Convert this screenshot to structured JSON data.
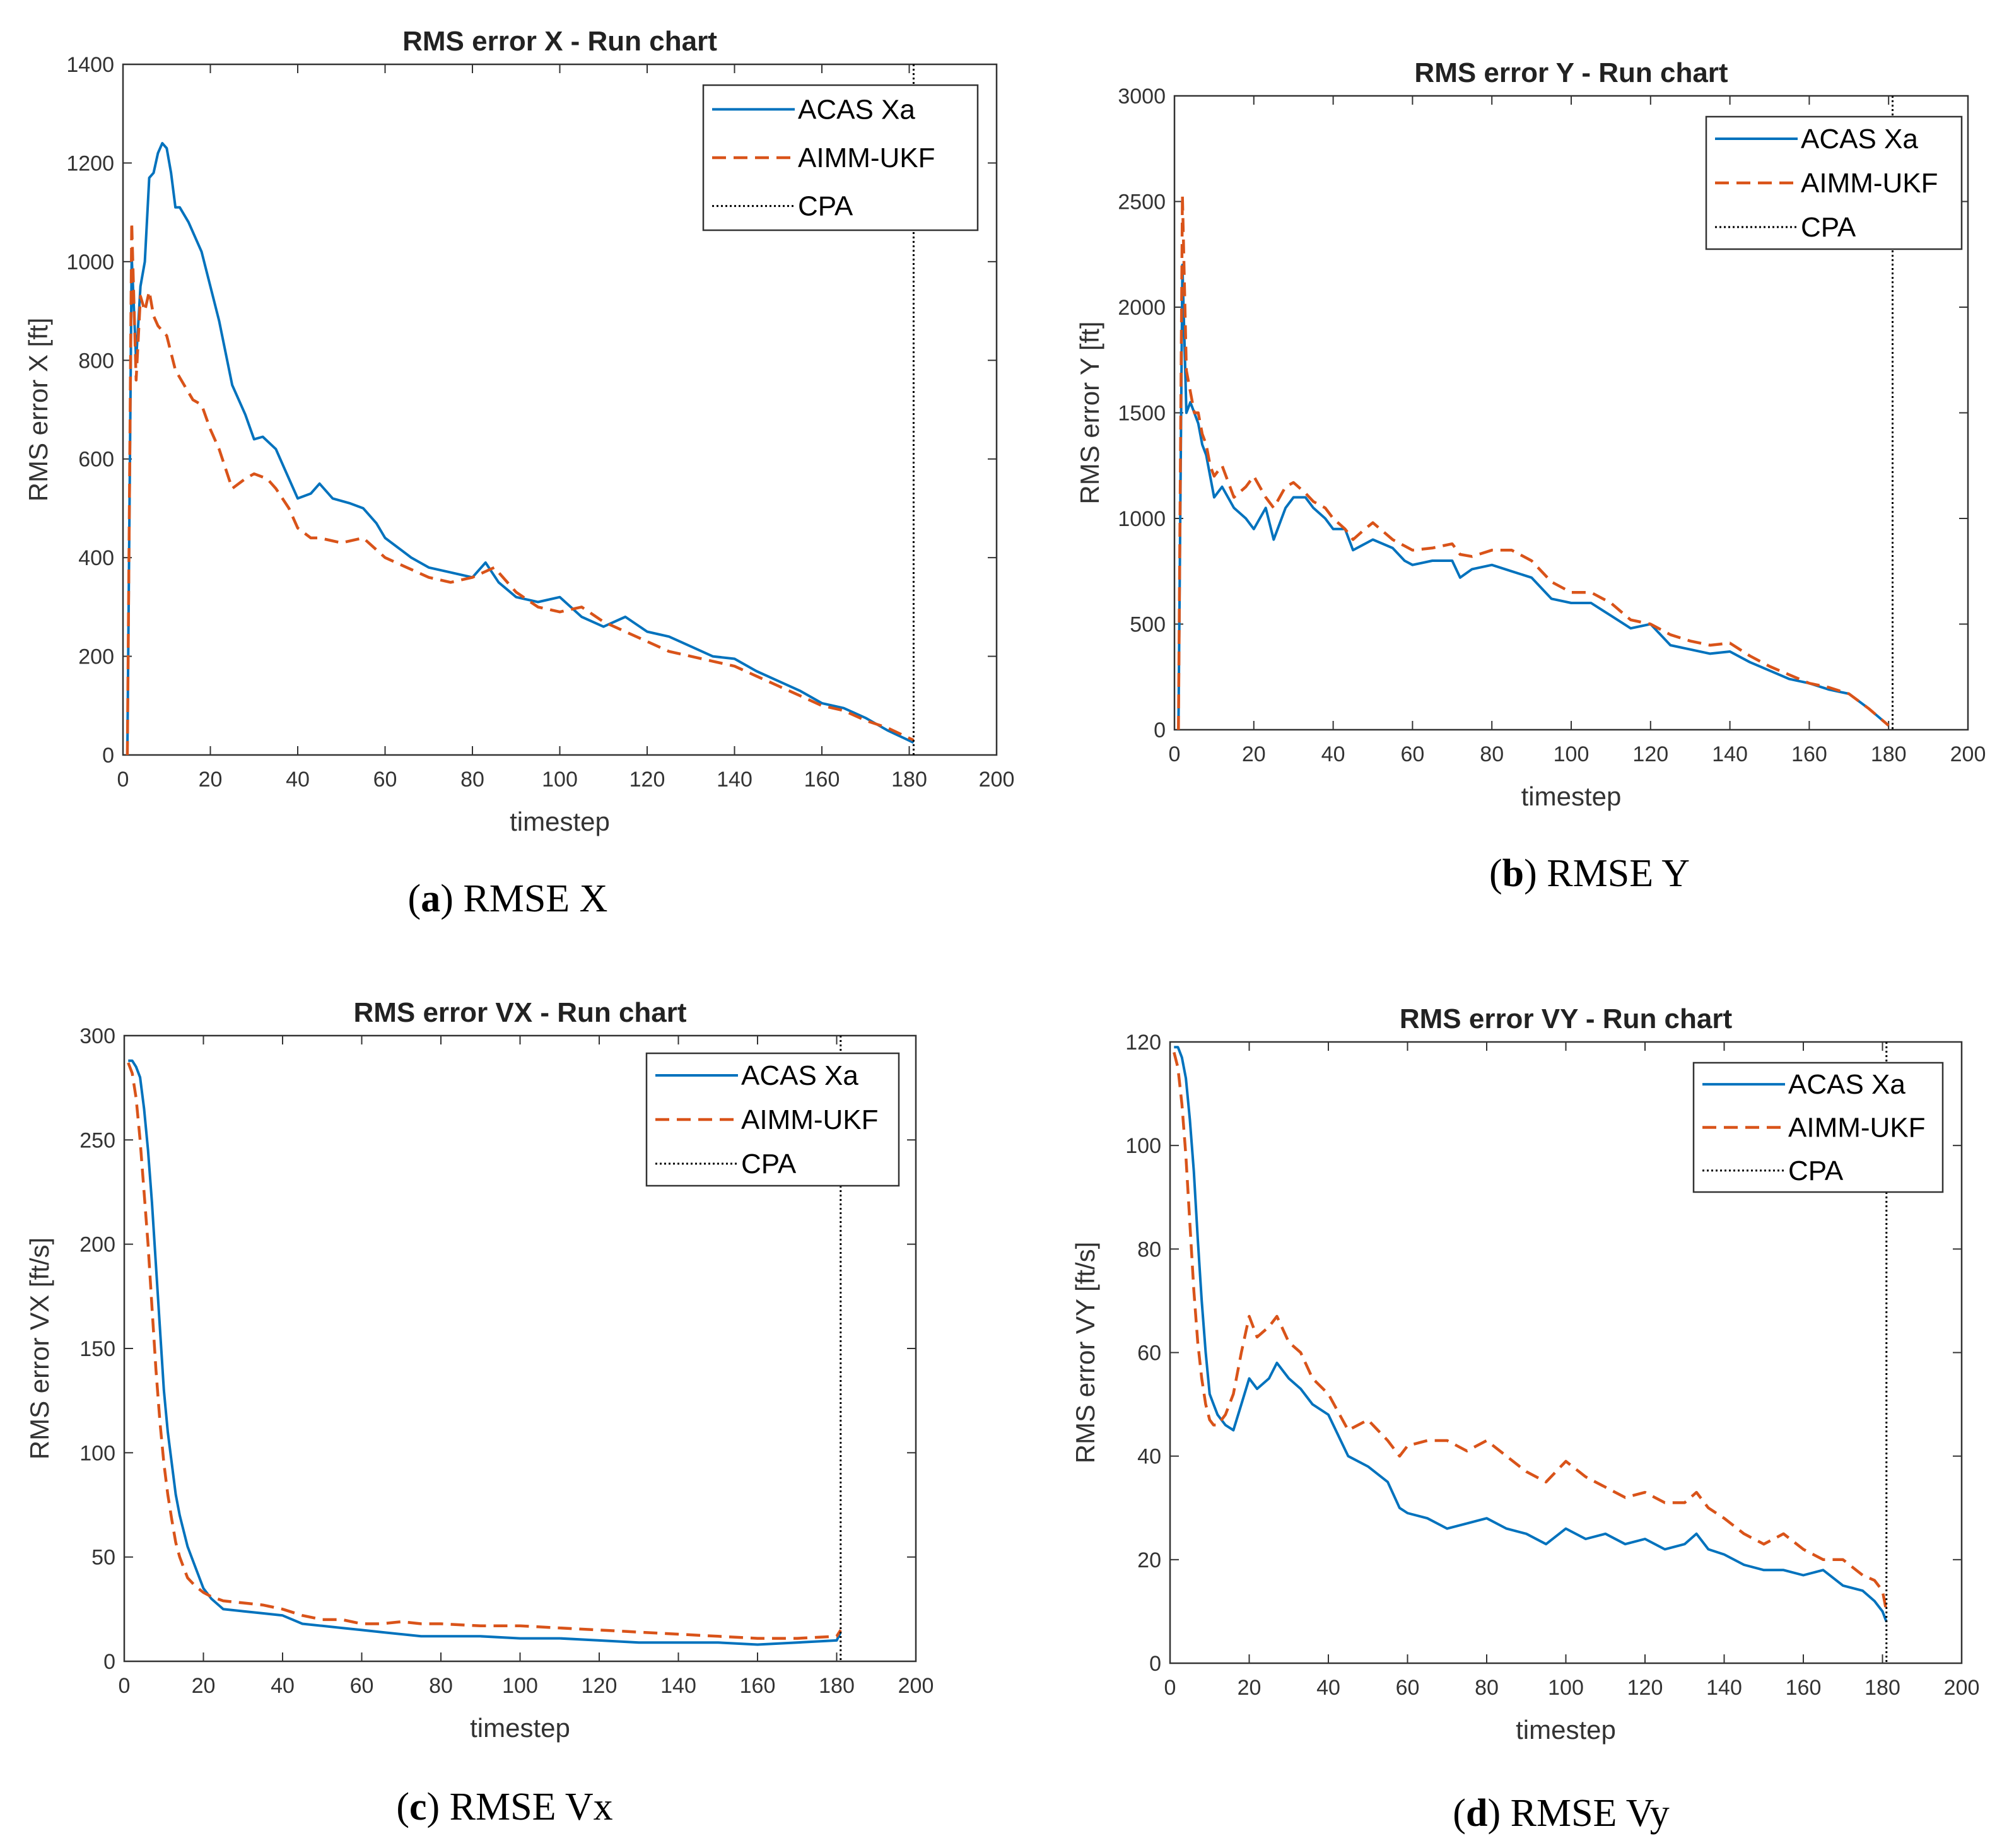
{
  "colors": {
    "acas": "#0072BD",
    "aimm": "#D95319",
    "cpa": "#000000",
    "axes": "#333333"
  },
  "chart_data": [
    {
      "id": "a",
      "type": "line",
      "title": "RMS error X - Run chart",
      "xlabel": "timestep",
      "ylabel": "RMS error X [ft]",
      "xlim": [
        0,
        200
      ],
      "ylim": [
        0,
        1400
      ],
      "xticks": [
        0,
        20,
        40,
        60,
        80,
        100,
        120,
        140,
        160,
        180,
        200
      ],
      "yticks": [
        0,
        200,
        400,
        600,
        800,
        1000,
        1200,
        1400
      ],
      "caption": {
        "label": "a",
        "text": "RMSE X"
      },
      "legend": [
        "ACAS Xa",
        "AIMM-UKF",
        "CPA"
      ],
      "cpa_x": 181,
      "series": [
        {
          "name": "ACAS Xa",
          "style": "solid",
          "x": [
            1,
            2,
            3,
            4,
            5,
            6,
            7,
            8,
            9,
            10,
            11,
            12,
            13,
            15,
            18,
            22,
            25,
            28,
            30,
            32,
            35,
            37,
            40,
            43,
            45,
            48,
            52,
            55,
            58,
            60,
            63,
            66,
            70,
            75,
            80,
            83,
            86,
            90,
            95,
            100,
            105,
            110,
            115,
            120,
            125,
            130,
            135,
            140,
            145,
            150,
            155,
            160,
            165,
            170,
            175,
            181
          ],
          "y": [
            0,
            1010,
            800,
            950,
            1000,
            1170,
            1180,
            1220,
            1240,
            1230,
            1180,
            1110,
            1110,
            1080,
            1020,
            880,
            750,
            690,
            640,
            645,
            620,
            580,
            520,
            530,
            550,
            520,
            510,
            500,
            470,
            440,
            420,
            400,
            380,
            370,
            360,
            390,
            350,
            320,
            310,
            320,
            280,
            260,
            280,
            250,
            240,
            220,
            200,
            195,
            170,
            150,
            130,
            105,
            95,
            75,
            50,
            25
          ]
        },
        {
          "name": "AIMM-UKF",
          "style": "dashed",
          "x": [
            1,
            2,
            3,
            4,
            5,
            6,
            7,
            8,
            9,
            10,
            12,
            14,
            16,
            18,
            20,
            22,
            25,
            28,
            30,
            33,
            35,
            38,
            40,
            43,
            45,
            50,
            55,
            60,
            65,
            70,
            75,
            80,
            85,
            90,
            95,
            100,
            105,
            110,
            115,
            120,
            125,
            130,
            135,
            140,
            145,
            150,
            155,
            160,
            165,
            170,
            175,
            181
          ],
          "y": [
            0,
            1080,
            760,
            930,
            900,
            940,
            890,
            870,
            860,
            850,
            780,
            750,
            720,
            710,
            660,
            620,
            540,
            560,
            570,
            560,
            540,
            500,
            460,
            440,
            440,
            430,
            440,
            400,
            380,
            360,
            350,
            360,
            380,
            330,
            300,
            290,
            300,
            270,
            250,
            230,
            210,
            200,
            190,
            180,
            160,
            140,
            120,
            100,
            90,
            70,
            55,
            30
          ]
        }
      ]
    },
    {
      "id": "b",
      "type": "line",
      "title": "RMS error Y - Run chart",
      "xlabel": "timestep",
      "ylabel": "RMS error Y [ft]",
      "xlim": [
        0,
        200
      ],
      "ylim": [
        0,
        3000
      ],
      "xticks": [
        0,
        20,
        40,
        60,
        80,
        100,
        120,
        140,
        160,
        180,
        200
      ],
      "yticks": [
        0,
        500,
        1000,
        1500,
        2000,
        2500,
        3000
      ],
      "caption": {
        "label": "b",
        "text": "RMSE Y"
      },
      "legend": [
        "ACAS Xa",
        "AIMM-UKF",
        "CPA"
      ],
      "cpa_x": 181,
      "series": [
        {
          "name": "ACAS Xa",
          "style": "solid",
          "x": [
            1,
            2,
            3,
            4,
            5,
            6,
            7,
            8,
            9,
            10,
            12,
            15,
            18,
            20,
            23,
            25,
            28,
            30,
            33,
            35,
            38,
            40,
            43,
            45,
            48,
            50,
            55,
            58,
            60,
            65,
            70,
            72,
            75,
            80,
            85,
            90,
            95,
            100,
            105,
            110,
            115,
            120,
            125,
            130,
            135,
            140,
            145,
            150,
            155,
            160,
            165,
            170,
            175,
            180
          ],
          "y": [
            0,
            2200,
            1500,
            1550,
            1500,
            1450,
            1350,
            1300,
            1200,
            1100,
            1150,
            1050,
            1000,
            950,
            1050,
            900,
            1050,
            1100,
            1100,
            1050,
            1000,
            950,
            950,
            850,
            880,
            900,
            860,
            800,
            780,
            800,
            800,
            720,
            760,
            780,
            750,
            720,
            620,
            600,
            600,
            540,
            480,
            500,
            400,
            380,
            360,
            370,
            320,
            280,
            240,
            220,
            190,
            170,
            100,
            20
          ]
        },
        {
          "name": "AIMM-UKF",
          "style": "dashed",
          "x": [
            1,
            2,
            3,
            4,
            5,
            6,
            7,
            8,
            9,
            10,
            12,
            15,
            18,
            20,
            23,
            25,
            28,
            30,
            33,
            35,
            38,
            40,
            43,
            45,
            48,
            50,
            55,
            58,
            60,
            65,
            70,
            72,
            75,
            80,
            85,
            90,
            95,
            100,
            105,
            110,
            115,
            120,
            125,
            130,
            135,
            140,
            145,
            150,
            155,
            160,
            165,
            170,
            175,
            180
          ],
          "y": [
            0,
            2530,
            1700,
            1600,
            1500,
            1500,
            1400,
            1350,
            1250,
            1200,
            1250,
            1100,
            1150,
            1200,
            1100,
            1050,
            1150,
            1170,
            1120,
            1080,
            1050,
            1000,
            950,
            900,
            950,
            980,
            900,
            870,
            850,
            860,
            880,
            830,
            820,
            850,
            850,
            800,
            700,
            650,
            650,
            600,
            520,
            500,
            450,
            420,
            400,
            410,
            350,
            300,
            260,
            220,
            200,
            170,
            100,
            20
          ]
        }
      ]
    },
    {
      "id": "c",
      "type": "line",
      "title": "RMS error VX - Run chart",
      "xlabel": "timestep",
      "ylabel": "RMS error VX [ft/s]",
      "xlim": [
        0,
        200
      ],
      "ylim": [
        0,
        300
      ],
      "xticks": [
        0,
        20,
        40,
        60,
        80,
        100,
        120,
        140,
        160,
        180,
        200
      ],
      "yticks": [
        0,
        50,
        100,
        150,
        200,
        250,
        300
      ],
      "caption": {
        "label": "c",
        "text": "RMSE Vx"
      },
      "legend": [
        "ACAS Xa",
        "AIMM-UKF",
        "CPA"
      ],
      "cpa_x": 181,
      "series": [
        {
          "name": "ACAS Xa",
          "style": "solid",
          "x": [
            1,
            2,
            3,
            4,
            5,
            6,
            7,
            8,
            9,
            10,
            11,
            12,
            13,
            14,
            16,
            18,
            20,
            22,
            25,
            30,
            35,
            40,
            45,
            50,
            55,
            60,
            65,
            70,
            75,
            80,
            90,
            100,
            110,
            120,
            130,
            140,
            150,
            160,
            170,
            180,
            181
          ],
          "y": [
            288,
            288,
            285,
            280,
            265,
            245,
            220,
            190,
            160,
            130,
            110,
            95,
            80,
            70,
            55,
            45,
            35,
            30,
            25,
            24,
            23,
            22,
            18,
            17,
            16,
            15,
            14,
            13,
            12,
            12,
            12,
            11,
            11,
            10,
            9,
            9,
            9,
            8,
            9,
            10,
            14
          ]
        },
        {
          "name": "AIMM-UKF",
          "style": "dashed",
          "x": [
            1,
            2,
            3,
            4,
            5,
            6,
            7,
            8,
            9,
            10,
            11,
            12,
            13,
            14,
            16,
            18,
            20,
            22,
            25,
            30,
            35,
            40,
            45,
            50,
            55,
            60,
            65,
            70,
            75,
            80,
            90,
            100,
            110,
            120,
            130,
            140,
            150,
            160,
            170,
            180,
            181
          ],
          "y": [
            287,
            282,
            270,
            250,
            225,
            200,
            170,
            140,
            115,
            95,
            80,
            68,
            57,
            50,
            40,
            36,
            33,
            31,
            29,
            28,
            27,
            25,
            22,
            20,
            20,
            18,
            18,
            19,
            18,
            18,
            17,
            17,
            16,
            15,
            14,
            13,
            12,
            11,
            11,
            12,
            15
          ]
        }
      ]
    },
    {
      "id": "d",
      "type": "line",
      "title": "RMS error VY - Run chart",
      "xlabel": "timestep",
      "ylabel": "RMS error VY [ft/s]",
      "xlim": [
        0,
        200
      ],
      "ylim": [
        0,
        120
      ],
      "xticks": [
        0,
        20,
        40,
        60,
        80,
        100,
        120,
        140,
        160,
        180,
        200
      ],
      "yticks": [
        0,
        20,
        40,
        60,
        80,
        100,
        120
      ],
      "caption": {
        "label": "d",
        "text": "RMSE Vy"
      },
      "legend": [
        "ACAS Xa",
        "AIMM-UKF",
        "CPA"
      ],
      "cpa_x": 181,
      "series": [
        {
          "name": "ACAS Xa",
          "style": "solid",
          "x": [
            1,
            2,
            3,
            4,
            5,
            6,
            7,
            8,
            9,
            10,
            11,
            12,
            14,
            16,
            18,
            20,
            22,
            25,
            27,
            30,
            33,
            36,
            40,
            45,
            50,
            55,
            58,
            60,
            65,
            70,
            75,
            80,
            85,
            90,
            95,
            100,
            105,
            110,
            115,
            120,
            125,
            130,
            133,
            136,
            140,
            145,
            150,
            155,
            160,
            165,
            170,
            175,
            178,
            180,
            181
          ],
          "y": [
            119,
            119,
            117,
            113,
            105,
            95,
            82,
            70,
            60,
            52,
            50,
            48,
            46,
            45,
            50,
            55,
            53,
            55,
            58,
            55,
            53,
            50,
            48,
            40,
            38,
            35,
            30,
            29,
            28,
            26,
            27,
            28,
            26,
            25,
            23,
            26,
            24,
            25,
            23,
            24,
            22,
            23,
            25,
            22,
            21,
            19,
            18,
            18,
            17,
            18,
            15,
            14,
            12,
            10,
            8
          ]
        },
        {
          "name": "AIMM-UKF",
          "style": "dashed",
          "x": [
            1,
            2,
            3,
            4,
            5,
            6,
            7,
            8,
            9,
            10,
            11,
            12,
            14,
            16,
            18,
            20,
            22,
            25,
            27,
            30,
            33,
            36,
            40,
            45,
            50,
            55,
            58,
            60,
            65,
            70,
            75,
            80,
            85,
            90,
            95,
            100,
            105,
            110,
            115,
            120,
            125,
            130,
            133,
            136,
            140,
            145,
            150,
            155,
            160,
            165,
            170,
            175,
            178,
            180,
            181
          ],
          "y": [
            118,
            115,
            108,
            98,
            85,
            72,
            62,
            55,
            50,
            47,
            46,
            46,
            48,
            52,
            60,
            67,
            63,
            65,
            67,
            62,
            60,
            55,
            52,
            45,
            47,
            43,
            40,
            42,
            43,
            43,
            41,
            43,
            40,
            37,
            35,
            39,
            36,
            34,
            32,
            33,
            31,
            31,
            33,
            30,
            28,
            25,
            23,
            25,
            22,
            20,
            20,
            17,
            16,
            14,
            10
          ]
        }
      ]
    }
  ]
}
